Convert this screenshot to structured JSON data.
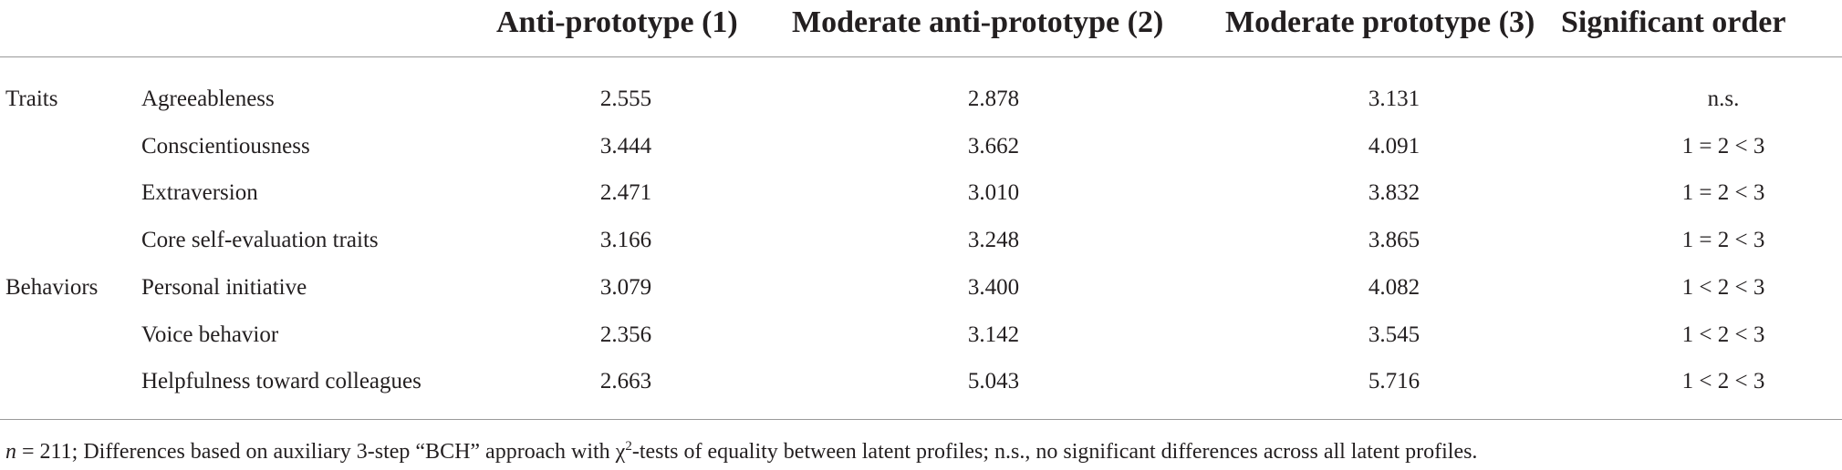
{
  "table": {
    "columns": [
      "Anti-prototype (1)",
      "Moderate anti-prototype (2)",
      "Moderate prototype (3)",
      "Significant order"
    ],
    "rows": [
      {
        "group": "Traits",
        "label": "Agreeableness",
        "cells": [
          "2.555",
          "2.878",
          "3.131",
          "n.s."
        ]
      },
      {
        "label": "Conscientiousness",
        "cells": [
          "3.444",
          "3.662",
          "4.091",
          "1 = 2 < 3"
        ]
      },
      {
        "label": "Extraversion",
        "cells": [
          "2.471",
          "3.010",
          "3.832",
          "1 = 2 < 3"
        ]
      },
      {
        "label": "Core self-evaluation traits",
        "cells": [
          "3.166",
          "3.248",
          "3.865",
          "1 = 2 < 3"
        ]
      },
      {
        "group": "Behaviors",
        "label": "Personal initiative",
        "cells": [
          "3.079",
          "3.400",
          "4.082",
          "1 < 2 < 3"
        ]
      },
      {
        "label": "Voice behavior",
        "cells": [
          "2.356",
          "3.142",
          "3.545",
          "1 < 2 < 3"
        ]
      },
      {
        "label": "Helpfulness toward colleagues",
        "cells": [
          "2.663",
          "5.043",
          "5.716",
          "1 < 2 < 3"
        ]
      }
    ]
  },
  "footnote": {
    "n": "n",
    "text1": " = 211; Differences based on auxiliary 3-step “BCH” approach with χ",
    "sup": "2",
    "text2": "-tests of equality between latent profiles; n.s., no significant differences across all latent profiles."
  }
}
